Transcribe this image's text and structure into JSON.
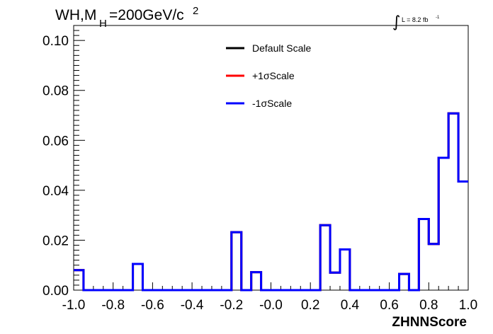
{
  "chart_data": {
    "type": "line",
    "title_main": "WH,M",
    "title_sub": "H",
    "title_rest": "=200GeV/c",
    "title_sup": "2",
    "lumi_symbol": "∫",
    "lumi_text": "L = 8.2 fb",
    "lumi_sup": "-1",
    "xlabel": "ZHNNScore",
    "ylabel": "",
    "xlim": [
      -1.0,
      1.0
    ],
    "ylim": [
      0.0,
      0.106
    ],
    "x_ticks": [
      {
        "value": -1.0,
        "label": "-1.0"
      },
      {
        "value": -0.8,
        "label": "-0.8"
      },
      {
        "value": -0.6,
        "label": "-0.6"
      },
      {
        "value": -0.4,
        "label": "-0.4"
      },
      {
        "value": -0.2,
        "label": "-0.2"
      },
      {
        "value": 0.0,
        "label": "-0.0"
      },
      {
        "value": 0.2,
        "label": "0.2"
      },
      {
        "value": 0.4,
        "label": "0.4"
      },
      {
        "value": 0.6,
        "label": "0.6"
      },
      {
        "value": 0.8,
        "label": "0.8"
      },
      {
        "value": 1.0,
        "label": "1.0"
      }
    ],
    "y_ticks": [
      {
        "value": 0.0,
        "label": "0.00"
      },
      {
        "value": 0.02,
        "label": "0.02"
      },
      {
        "value": 0.04,
        "label": "0.04"
      },
      {
        "value": 0.06,
        "label": "0.06"
      },
      {
        "value": 0.08,
        "label": "0.08"
      },
      {
        "value": 0.1,
        "label": "0.10"
      }
    ],
    "bin_edges": [
      -1.0,
      -0.95,
      -0.9,
      -0.85,
      -0.8,
      -0.75,
      -0.7,
      -0.65,
      -0.6,
      -0.55,
      -0.5,
      -0.45,
      -0.4,
      -0.35,
      -0.3,
      -0.25,
      -0.2,
      -0.15,
      -0.1,
      -0.05,
      0.0,
      0.05,
      0.1,
      0.15,
      0.2,
      0.25,
      0.3,
      0.35,
      0.4,
      0.45,
      0.5,
      0.55,
      0.6,
      0.65,
      0.7,
      0.75,
      0.8,
      0.85,
      0.9,
      0.95,
      1.0
    ],
    "series": [
      {
        "name": "Default Scale",
        "color": "#000000",
        "values": [
          0.008,
          0,
          0,
          0,
          0,
          0,
          0.0105,
          0,
          0,
          0,
          0,
          0,
          0,
          0,
          0,
          0,
          0.0232,
          0,
          0.0072,
          0,
          0,
          0,
          0,
          0,
          0,
          0.026,
          0.007,
          0.0163,
          0,
          0,
          0,
          0,
          0,
          0.0065,
          0,
          0.0285,
          0.0185,
          0.053,
          0.0708,
          0.0435
        ]
      },
      {
        "name": "+1σScale",
        "color": "#ff0000",
        "values": [
          0.008,
          0,
          0,
          0,
          0,
          0,
          0.0105,
          0,
          0,
          0,
          0,
          0,
          0,
          0,
          0,
          0,
          0.0232,
          0,
          0.0072,
          0,
          0,
          0,
          0,
          0,
          0,
          0.026,
          0.007,
          0.0163,
          0,
          0,
          0,
          0,
          0,
          0.0065,
          0,
          0.0285,
          0.0185,
          0.053,
          0.0708,
          0.0435
        ]
      },
      {
        "name": "-1σScale",
        "color": "#0000ff",
        "values": [
          0.008,
          0,
          0,
          0,
          0,
          0,
          0.0105,
          0,
          0,
          0,
          0,
          0,
          0,
          0,
          0,
          0,
          0.0232,
          0,
          0.0072,
          0,
          0,
          0,
          0,
          0,
          0,
          0.026,
          0.007,
          0.0163,
          0,
          0,
          0,
          0,
          0,
          0.0065,
          0,
          0.0285,
          0.0185,
          0.053,
          0.0708,
          0.0435
        ]
      }
    ],
    "legend_placement": "top-center",
    "grid": false
  }
}
